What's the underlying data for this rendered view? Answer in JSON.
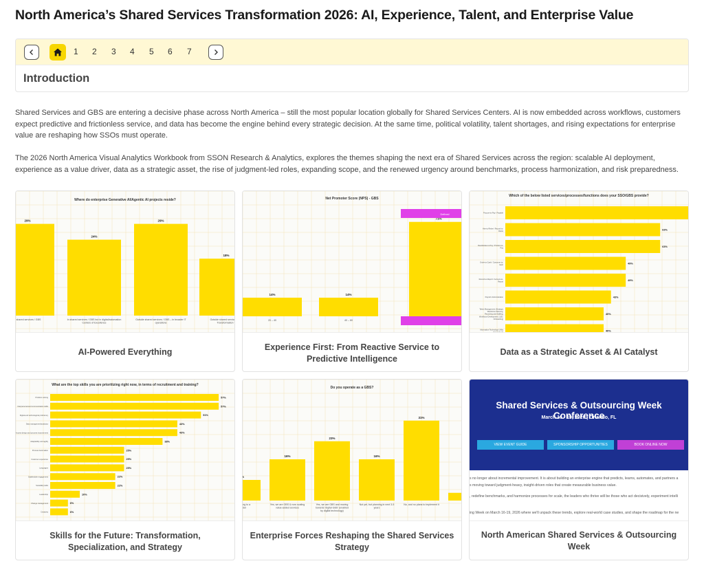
{
  "page": {
    "title": "North America’s Shared Services Transformation 2026: AI, Experience, Talent, and Enterprise Value"
  },
  "nav": {
    "pages": [
      "1",
      "2",
      "3",
      "4",
      "5",
      "6",
      "7"
    ],
    "section_heading": "Introduction",
    "colors": {
      "bar_bg": "#fff8d4",
      "home_active": "#f7d600"
    }
  },
  "intro": {
    "paragraph_1": "Shared Services and GBS are entering a decisive phase across North America – still the most popular location globally for Shared Services Centers. AI is now embedded across workflows, customers expect predictive and frictionless service, and data has become the engine behind every strategic decision. At the same time, political volatility, talent shortages, and rising expectations for enterprise value are reshaping how SSOs must operate.",
    "paragraph_2": "The 2026 North America Visual Analytics Workbook from SSON Research & Analytics, explores the themes shaping the next era of Shared Services across the region: scalable AI deployment, experience as a value driver, data as a strategic asset, the rise of judgment-led roles, expanding scope, and the renewed urgency around benchmarks, process harmonization, and risk preparedness."
  },
  "cards": [
    {
      "caption": "AI-Powered Everything",
      "chart": {
        "title": "Where do enterprise Generative AI/Agentic AI projects reside?",
        "values": [
          "29%",
          "24%",
          "29%",
          "18%"
        ],
        "labels": [
          [
            "e shared services / GBS"
          ],
          [
            "In shared services / GBS but in digital/automation",
            "Centers of Excellence"
          ],
          [
            "Outside shared services / GBS – in broader IT",
            "operations"
          ],
          [
            "Outside shared services / GB",
            "Transformation T"
          ]
        ]
      }
    },
    {
      "caption": "Experience First: From Reactive Service to Predictive Intelligence",
      "chart": {
        "title": "Net Promoter Score (NPS) - GBS",
        "values": [
          "14%",
          "14%",
          "71%"
        ],
        "labels": [
          "20 – 40",
          "40 – 60",
          "> 60"
        ],
        "highlight_label": "Defined"
      }
    },
    {
      "caption": "Data as a Strategic Asset & AI Catalyst",
      "chart": {
        "title": "Which of the below listed services/processes/functions does your SSO/GBS provide?",
        "values": [
          "77%",
          "63%",
          "63%",
          "49%",
          "49%",
          "43%",
          "40%",
          "40%"
        ],
        "labels": [
          [
            "Procure-to-Pay / Payable"
          ],
          [
            "Hire-to-Retire / Record-to-",
            "Retire"
          ],
          [
            "Real-Estate-to-Pay / Product-to-",
            "Pay"
          ],
          [
            "Order-to-Cash / Customer-to-",
            "Cash"
          ],
          [
            "Record-to-Report / Account-to-",
            "Report"
          ],
          [
            "Payroll / Administration"
          ],
          [
            "Talent Management (Strategic",
            "Workforce Planning,",
            "Recruiting and Staffing,",
            "Workforce Development, L&D,",
            "Onboarding)"
          ],
          [
            "Information Technology Utility",
            "IT Helpdesk)"
          ]
        ]
      }
    },
    {
      "caption": "Skills for the Future: Transformation, Specialization, and Strategy",
      "chart": {
        "title": "What are the top skills you are prioritizing right now, in terms of recruitment and training?",
        "values": [
          "57%",
          "57%",
          "51%",
          "43%",
          "43%",
          "38%",
          "25%",
          "25%",
          "25%",
          "22%",
          "22%",
          "10%",
          "6%",
          "6%"
        ],
        "labels": [
          "Problem solving",
          "Interpersonal and communication skills",
          "Digital and technological proficiency",
          "Data management/analytics",
          "Process design and process improvement",
          "Adaptability and agility",
          "Process Automation",
          "Customer experience",
          "Languages",
          "Stakeholder engagement",
          "Social/EQ skills",
          "Leadership",
          "Change management",
          "Creativity"
        ]
      }
    },
    {
      "caption": "Enterprise Forces Reshaping the Shared Services Strategy",
      "chart": {
        "title": "Do you operate as a GBS?",
        "values": [
          "%",
          "16%",
          "23%",
          "16%",
          "31%",
          ""
        ],
        "labels": [
          [
            "nsitioning to a",
            "model"
          ],
          [
            "Yes, we are GBS & now scaling",
            "value-added services"
          ],
          [
            "Yes, we are GBS and moving",
            "towards 'digital GBS' (enabled",
            "by digital technology)"
          ],
          [
            "Not yet, but planning in next 3-5",
            "years"
          ],
          [
            "No, and no plans to implement it"
          ],
          [
            "No, c",
            "but do"
          ]
        ]
      }
    },
    {
      "caption": "North American Shared Services & Outsourcing Week",
      "conference": {
        "title": "Shared Services & Outsourcing Week Conference",
        "date": "March 16 - 19, 2026 | Orlando, FL",
        "buttons": [
          "VIEW EVENT GUIDE",
          "SPONSORSHIP OPPORTUNITIES",
          "BOOK ONLINE NOW"
        ],
        "text_1": "s no longer about incremental improvement. It is about building an enterprise engine that predicts, learns, automates, and partners a",
        "text_2": "s moving toward judgment-heavy, insight-driven roles that create measurable business value.",
        "text_3": ", redefine benchmarks, and harmonize processes for scale, the leaders who thrive will be those who act decisively, experiment intelli",
        "text_4": "ing Week on March 16-19, 2026 where we'll unpack these trends, explore real-world case studies, and shape the roadmap for the ne",
        "colors": {
          "banner": "#1c2f8f",
          "button_blue": "#2aa8e0",
          "button_purple": "#c040d6"
        }
      }
    }
  ],
  "chart_data": [
    {
      "type": "bar",
      "title": "Where do enterprise Generative AI/Agentic AI projects reside?",
      "categories": [
        "e shared services / GBS",
        "In shared services / GBS but in digital/automation Centers of Excellence",
        "Outside shared services / GBS – in broader IT operations",
        "Outside shared services / GB Transformation T"
      ],
      "values": [
        29,
        24,
        29,
        18
      ],
      "ylim": [
        0,
        30
      ],
      "color": "#ffdd00"
    },
    {
      "type": "bar",
      "title": "Net Promoter Score (NPS) - GBS",
      "categories": [
        "20 – 40",
        "40 – 60",
        "> 60"
      ],
      "values": [
        14,
        14,
        71
      ],
      "ylim": [
        0,
        75
      ],
      "color": "#ffdd00",
      "highlight_color": "#e040e8"
    },
    {
      "type": "bar",
      "title": "Which of the below listed services/processes/functions does your SSO/GBS provide?",
      "orientation": "horizontal",
      "categories": [
        "Procure-to-Pay / Payable",
        "Hire-to-Retire / Record-to-Retire",
        "Real-Estate-to-Pay / Product-to-Pay",
        "Order-to-Cash / Customer-to-Cash",
        "Record-to-Report / Account-to-Report",
        "Payroll / Administration",
        "Talent Management (Strategic Workforce Planning, Recruiting and Staffing, Workforce Development, L&D, Onboarding)",
        "Information Technology Utility IT Helpdesk)"
      ],
      "values": [
        77,
        63,
        63,
        49,
        49,
        43,
        40,
        40
      ],
      "xlim": [
        0,
        80
      ],
      "color": "#ffdd00"
    },
    {
      "type": "bar",
      "title": "What are the top skills you are prioritizing right now, in terms of recruitment and training?",
      "orientation": "horizontal",
      "categories": [
        "Problem solving",
        "Interpersonal and communication skills",
        "Digital and technological proficiency",
        "Data management/analytics",
        "Process design and process improvement",
        "Adaptability and agility",
        "Process Automation",
        "Customer experience",
        "Languages",
        "Stakeholder engagement",
        "Social/EQ skills",
        "Leadership",
        "Change management",
        "Creativity"
      ],
      "values": [
        57,
        57,
        51,
        43,
        43,
        38,
        25,
        25,
        25,
        22,
        22,
        10,
        6,
        6
      ],
      "xlim": [
        0,
        60
      ],
      "color": "#ffdd00"
    },
    {
      "type": "bar",
      "title": "Do you operate as a GBS?",
      "categories": [
        "nsitioning to a model",
        "Yes, we are GBS & now scaling value-added services",
        "Yes, we are GBS and moving towards 'digital GBS' (enabled by digital technology)",
        "Not yet, but planning in next 3-5 years",
        "No, and no plans to implement it",
        "No, c but do"
      ],
      "values": [
        8,
        16,
        23,
        16,
        31,
        3
      ],
      "ylim": [
        0,
        32
      ],
      "color": "#ffdd00"
    }
  ]
}
